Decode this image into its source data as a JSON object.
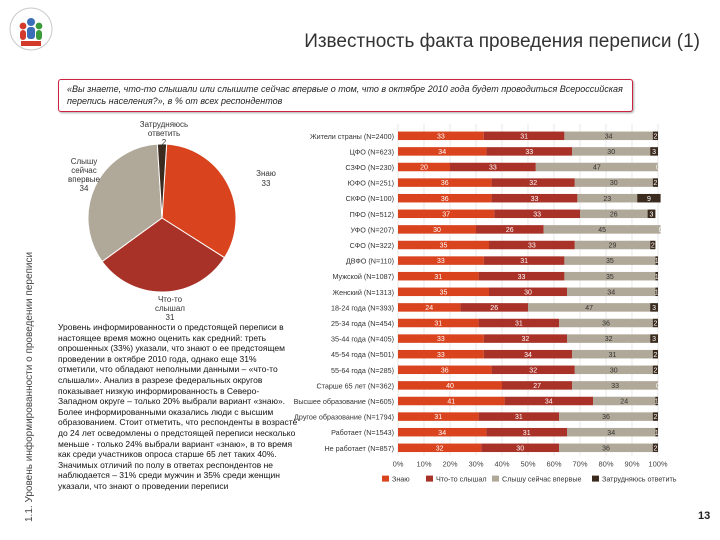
{
  "title": "Известность факта проведения переписи (1)",
  "side_label": "1.1. Уровень информированности о проведении переписи",
  "question": "«Вы знаете, что-то слышали или слышите сейчас впервые о том, что в октябре 2010 года будет проводиться Всероссийская перепись населения?», в % от всех респондентов",
  "description": "Уровень информированности о предстоящей переписи в настоящее время можно оценить как средний: треть опрошенных (33%) указали, что знают о ее предстоящем проведении в октябре 2010 года, однако еще 31% отметили, что обладают неполными данными – «что-то слышали». Анализ в разрезе федеральных округов показывает низкую информированность в Северо-Западном округе – только 20% выбрали вариант «знаю». Более информированными оказались люди с высшим образованием. Стоит отметить, что респонденты в возрасте до 24 лет осведомлены о предстоящей переписи несколько меньше - только 24% выбрали вариант «знаю», в то время как среди участников опроса старше 65 лет таких 40%. Значимых отличий по полу в ответах респондентов не наблюдается – 31% среди мужчин и 35% среди женщин указали, что знают о проведении переписи",
  "page_number": "13",
  "colors": {
    "know": "#d9431e",
    "heard": "#a83228",
    "first": "#b0a898",
    "hard": "#3b2a1e"
  },
  "chart_data": [
    {
      "type": "pie",
      "slices": [
        {
          "label": "Знаю",
          "value": 33
        },
        {
          "label": "Что-то слышал",
          "value": 31
        },
        {
          "label": "Слышу сейчас впервые",
          "value": 34
        },
        {
          "label": "Затрудняюсь ответить",
          "value": 2
        }
      ],
      "slice_labels": {
        "know": "Знаю",
        "know_val": "33",
        "heard_l1": "Что-то",
        "heard_l2": "слышал",
        "heard_val": "31",
        "first_l1": "Слышу",
        "first_l2": "сейчас",
        "first_l3": "впервые",
        "first_val": "34",
        "hard_l1": "Затрудняюсь",
        "hard_l2": "ответить",
        "hard_val": "2"
      }
    },
    {
      "type": "stacked-bar",
      "orientation": "horizontal",
      "categories": [
        "Жители страны (N=2400)",
        "ЦФО (N=623)",
        "СЗФО (N=230)",
        "ЮФО (N=251)",
        "СКФО (N=100)",
        "ПФО (N=512)",
        "УФО (N=207)",
        "СФО (N=322)",
        "ДВФО (N=110)",
        "Мужской (N=1087)",
        "Женский (N=1313)",
        "18-24 года (N=393)",
        "25-34 года (N=454)",
        "35-44 года (N=405)",
        "45-54 года (N=501)",
        "55-64 года (N=285)",
        "Старше 65 лет (N=362)",
        "Высшее образование (N=605)",
        "Другое образование (N=1794)",
        "Работает (N=1543)",
        "Не работает (N=857)"
      ],
      "series": [
        {
          "name": "Знаю",
          "values": [
            33,
            34,
            20,
            36,
            36,
            37,
            30,
            35,
            33,
            31,
            35,
            24,
            31,
            33,
            33,
            36,
            40,
            41,
            31,
            34,
            32
          ]
        },
        {
          "name": "Что-то слышал",
          "values": [
            31,
            33,
            33,
            32,
            33,
            33,
            26,
            33,
            31,
            33,
            30,
            26,
            31,
            32,
            34,
            32,
            27,
            34,
            31,
            31,
            30
          ]
        },
        {
          "name": "Слышу сейчас впервые",
          "values": [
            34,
            30,
            47,
            30,
            23,
            26,
            45,
            29,
            35,
            35,
            34,
            47,
            36,
            32,
            31,
            30,
            33,
            24,
            36,
            34,
            36
          ]
        },
        {
          "name": "Затрудняюсь ответить",
          "values": [
            2,
            3,
            0,
            2,
            9,
            3,
            0,
            2,
            1,
            1,
            1,
            3,
            2,
            3,
            2,
            2,
            0,
            1,
            2,
            1,
            2
          ]
        }
      ],
      "x_ticks": [
        "0%",
        "10%",
        "20%",
        "30%",
        "40%",
        "50%",
        "60%",
        "70%",
        "80%",
        "90%",
        "100%"
      ],
      "xlim": [
        0,
        100
      ],
      "legend": [
        "Знаю",
        "Что-то слышал",
        "Слышу сейчас впервые",
        "Затрудняюсь ответить"
      ]
    }
  ]
}
